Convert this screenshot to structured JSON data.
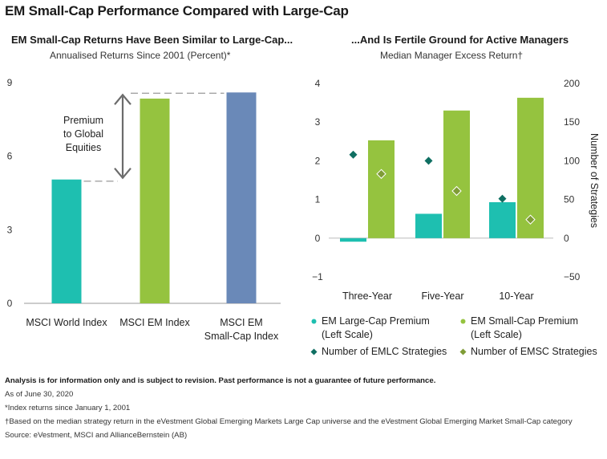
{
  "title": "EM Small-Cap Performance Compared with Large-Cap",
  "colors": {
    "teal": "#1ebfb0",
    "green": "#95c33f",
    "blue": "#6a89b8",
    "dark_teal": "#0f6f62",
    "olive": "#7f9c36",
    "axis_text": "#333333",
    "arrow": "#6b6b6b",
    "dash": "#aaaaaa"
  },
  "left": {
    "title": "EM Small-Cap Returns Have Been Similar to Large-Cap...",
    "subtitle": "Annualised Returns Since 2001 (Percent)*",
    "annotation": [
      "Premium",
      "to Global",
      "Equities"
    ]
  },
  "right": {
    "title": "...And Is Fertile Ground for Active Managers",
    "subtitle": "Median Manager Excess Return†",
    "y2_label": "Number of Strategies"
  },
  "legend": {
    "lc_premium": [
      "EM Large-Cap Premium",
      "(Left Scale)"
    ],
    "sc_premium": [
      "EM Small-Cap Premium",
      "(Left Scale)"
    ],
    "emlc": "Number of EMLC Strategies",
    "emsc": "Number of EMSC Strategies"
  },
  "footer": {
    "disclaimer": "Analysis is for information only and is subject to revision. Past performance is not a guarantee of future performance.",
    "asof": "As of June 30, 2020",
    "note1": "*Index returns since January 1, 2001",
    "note2": "†Based on the median strategy return in the eVestment Global Emerging Markets Large Cap universe and the eVestment Global Emerging Market Small-Cap category",
    "source": "Source: eVestment, MSCI and AllianceBernstein (AB)"
  },
  "chart_data": [
    {
      "type": "bar",
      "title": "EM Small-Cap Returns Have Been Similar to Large-Cap...",
      "subtitle": "Annualised Returns Since 2001 (Percent)*",
      "categories": [
        "MSCI World Index",
        "MSCI EM Index",
        "MSCI EM Small-Cap Index"
      ],
      "category_lines": [
        [
          "MSCI World Index"
        ],
        [
          "MSCI EM Index"
        ],
        [
          "MSCI EM",
          "Small-Cap Index"
        ]
      ],
      "values": [
        5.05,
        8.35,
        8.6
      ],
      "bar_colors": [
        "#1ebfb0",
        "#95c33f",
        "#6a89b8"
      ],
      "ylim": [
        0,
        9
      ],
      "yticks": [
        0,
        3,
        6,
        9
      ],
      "grid": false,
      "annotation": "Premium to Global Equities"
    },
    {
      "type": "bar",
      "title": "...And Is Fertile Ground for Active Managers",
      "subtitle": "Median Manager Excess Return†",
      "categories": [
        "Three-Year",
        "Five-Year",
        "10-Year"
      ],
      "ylim": [
        -1,
        4
      ],
      "yticks": [
        -1,
        0,
        1,
        2,
        3,
        4
      ],
      "y2lim": [
        -50,
        200
      ],
      "y2ticks": [
        -50,
        0,
        50,
        100,
        150,
        200
      ],
      "y2label": "Number of Strategies",
      "grid": false,
      "legend_position": "bottom",
      "series": [
        {
          "name": "EM Large-Cap Premium (Left Scale)",
          "kind": "bar",
          "axis": "left",
          "color": "#1ebfb0",
          "values": [
            -0.05,
            0.63,
            0.93
          ]
        },
        {
          "name": "EM Small-Cap Premium (Left Scale)",
          "kind": "bar",
          "axis": "left",
          "color": "#95c33f",
          "values": [
            2.53,
            3.3,
            3.63
          ]
        },
        {
          "name": "Number of EMLC Strategies",
          "kind": "scatter",
          "axis": "right",
          "color": "#0f6f62",
          "values": [
            108,
            100,
            51
          ]
        },
        {
          "name": "Number of EMSC Strategies",
          "kind": "scatter",
          "axis": "right",
          "color": "#7f9c36",
          "values": [
            83,
            61,
            24
          ]
        }
      ]
    }
  ]
}
